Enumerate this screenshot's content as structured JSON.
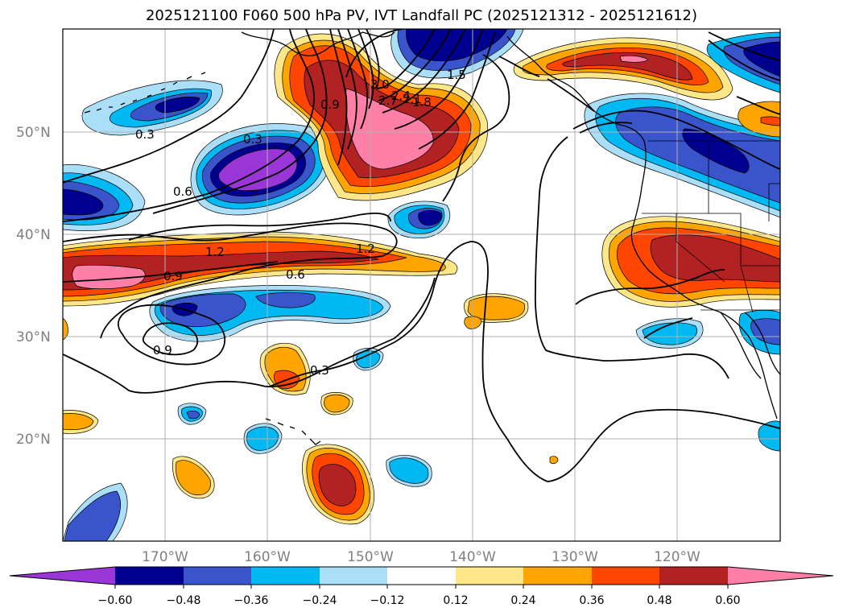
{
  "title": "2025121100 F060 500 hPa PV, IVT Landfall PC (2025121312 - 2025121612)",
  "map": {
    "lon_range": [
      -180,
      -110
    ],
    "lat_range": [
      10,
      60
    ],
    "lat_labels": [
      "20°N",
      "30°N",
      "40°N",
      "50°N"
    ],
    "lon_labels": [
      "170°W",
      "160°W",
      "150°W",
      "140°W",
      "130°W",
      "120°W"
    ]
  },
  "colorbar": {
    "ticks": [
      "−0.60",
      "−0.48",
      "−0.36",
      "−0.24",
      "−0.12",
      "0.12",
      "0.24",
      "0.36",
      "0.48",
      "0.60"
    ],
    "colors": {
      "purple": "#9a35d8",
      "navy": "#000090",
      "royal": "#3a55cc",
      "cyan": "#00b9f3",
      "lightblue": "#abdff8",
      "white": "#ffffff",
      "yellow": "#fde789",
      "orange": "#ffa500",
      "redorange": "#ff4500",
      "firebrick": "#b22222",
      "pink": "#ff7fa8"
    }
  },
  "contour_labels": [
    "3.0",
    "2.7",
    "2.4",
    "2.1",
    "1.8",
    "1.5",
    "0.9",
    "0.3",
    "0.6",
    "1.2",
    "1.2",
    "0.9",
    "0.6",
    "0.9",
    "0.3",
    "0.3"
  ]
}
